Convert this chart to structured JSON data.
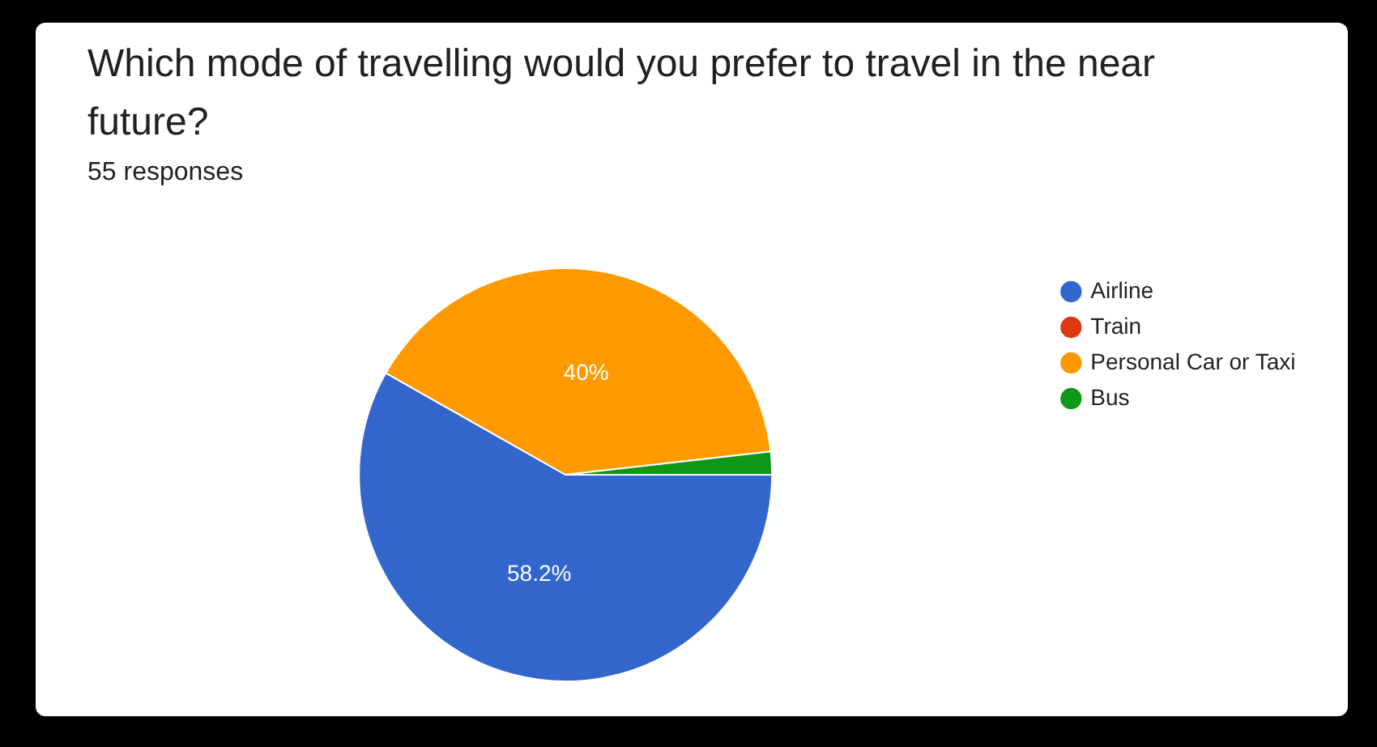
{
  "chart_data": {
    "type": "pie",
    "title": "Which mode of travelling would you prefer to travel in the near future?",
    "subtitle": "55 responses",
    "categories": [
      "Airline",
      "Train",
      "Personal Car or Taxi",
      "Bus"
    ],
    "values": [
      58.2,
      0,
      40,
      1.8
    ],
    "colors": [
      "#3366cc",
      "#dc3912",
      "#ff9900",
      "#109618"
    ],
    "value_labels": [
      "58.2%",
      null,
      "40%",
      null
    ],
    "legend": "right"
  }
}
